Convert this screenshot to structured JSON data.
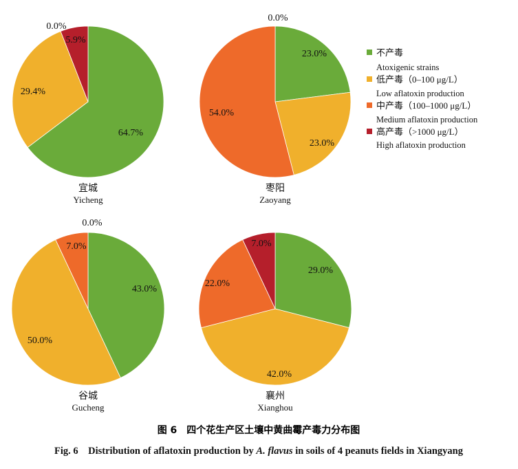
{
  "chart_data": [
    {
      "type": "pie",
      "place_zh": "宜城",
      "place_en": "Yicheng",
      "values": [
        64.7,
        29.4,
        0.0,
        5.9
      ],
      "labels": [
        "64.7%",
        "29.4%",
        "0.0%",
        "5.9%"
      ]
    },
    {
      "type": "pie",
      "place_zh": "枣阳",
      "place_en": "Zaoyang",
      "values": [
        23.0,
        23.0,
        54.0,
        0.0
      ],
      "labels": [
        "23.0%",
        "23.0%",
        "54.0%",
        "0.0%"
      ]
    },
    {
      "type": "pie",
      "place_zh": "谷城",
      "place_en": "Gucheng",
      "values": [
        43.0,
        50.0,
        7.0,
        0.0
      ],
      "labels": [
        "43.0%",
        "50.0%",
        "7.0%",
        "0.0%"
      ]
    },
    {
      "type": "pie",
      "place_zh": "襄州",
      "place_en": "Xianghou",
      "values": [
        29.0,
        42.0,
        22.0,
        7.0
      ],
      "labels": [
        "29.0%",
        "42.0%",
        "22.0%",
        "7.0%"
      ]
    }
  ],
  "legend": {
    "placement": "right",
    "items": [
      {
        "zh": "不产毒",
        "en": "Atoxigenic strains",
        "color": "#6aab3a"
      },
      {
        "zh": "低产毒（0–100 μg/L）",
        "en": "Low aflatoxin production",
        "color": "#f0b02c"
      },
      {
        "zh": "中产毒（100–1000 μg/L）",
        "en": "Medium aflatoxin production",
        "color": "#ee6a2a"
      },
      {
        "zh": "高产毒（>1000 μg/L）",
        "en": "High aflatoxin production",
        "color": "#b51f2b"
      }
    ]
  },
  "caption": {
    "zh": "图 6　四个花生产区土壤中黄曲霉产毒力分布图",
    "en_prefix": "Fig. 6　Distribution of aflatoxin production by ",
    "en_italic": "A. flavus",
    "en_suffix": " in soils of 4 peanuts fields in Xiangyang"
  }
}
